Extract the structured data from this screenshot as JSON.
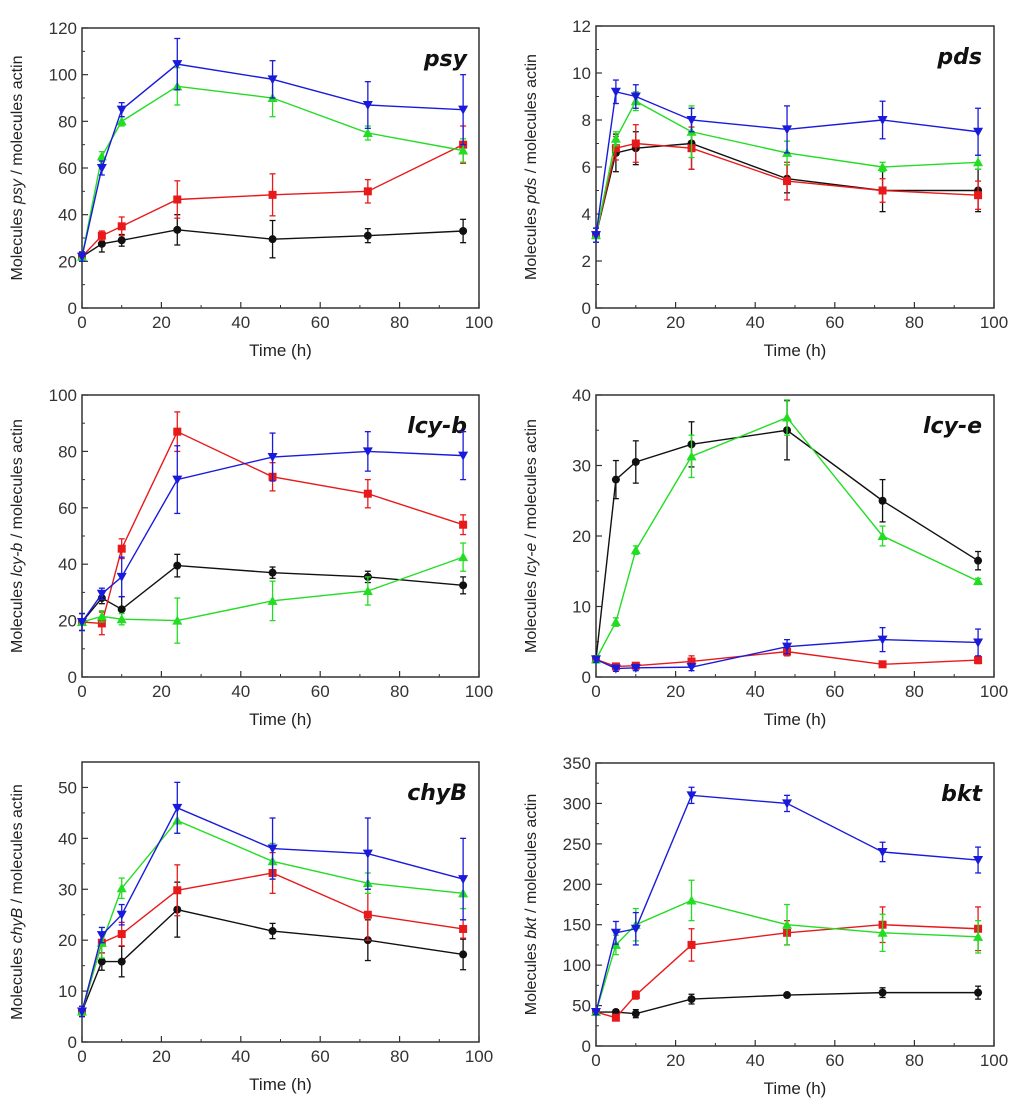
{
  "chart_data": [
    {
      "type": "line",
      "title": "psy",
      "xlabel": "Time (h)",
      "ylabel_parts": [
        "Molecules ",
        "psy",
        " / molecules actin"
      ],
      "xlim": [
        0,
        100
      ],
      "ylim": [
        0,
        120
      ],
      "xticks": [
        0,
        20,
        40,
        60,
        80,
        100
      ],
      "yticks": [
        0,
        20,
        40,
        60,
        80,
        100,
        120
      ],
      "x": [
        0,
        5,
        10,
        24,
        48,
        72,
        96
      ],
      "series": [
        {
          "name": "black",
          "color": "#111111",
          "marker": "circle",
          "values": [
            22,
            27.5,
            29,
            33.5,
            29.5,
            31,
            33
          ],
          "errors": [
            2,
            3.5,
            2.5,
            6.5,
            8,
            3,
            5
          ]
        },
        {
          "name": "red",
          "color": "#e8191b",
          "marker": "square",
          "values": [
            22,
            31,
            35,
            46.5,
            48.5,
            50,
            70
          ],
          "errors": [
            2,
            2,
            4,
            8,
            9,
            5,
            8
          ]
        },
        {
          "name": "green",
          "color": "#22dd22",
          "marker": "triangle-up",
          "values": [
            22,
            65,
            80,
            95,
            90,
            75,
            67.5
          ],
          "errors": [
            2,
            2,
            2,
            8,
            8,
            3,
            5
          ]
        },
        {
          "name": "blue",
          "color": "#1a1adc",
          "marker": "triangle-down",
          "values": [
            22,
            60,
            85,
            104.5,
            98,
            87,
            85
          ],
          "errors": [
            2,
            3,
            3,
            11,
            8,
            10,
            15
          ]
        }
      ]
    },
    {
      "type": "line",
      "title": "pds",
      "xlabel": "Time (h)",
      "ylabel_parts": [
        "Molecules ",
        "pds",
        " / molecules actin"
      ],
      "xlim": [
        0,
        100
      ],
      "ylim": [
        0,
        12
      ],
      "xticks": [
        0,
        20,
        40,
        60,
        80,
        100
      ],
      "yticks": [
        0,
        2,
        4,
        6,
        8,
        10,
        12
      ],
      "x": [
        0,
        5,
        10,
        24,
        48,
        72,
        96
      ],
      "series": [
        {
          "name": "black",
          "color": "#111111",
          "marker": "circle",
          "values": [
            3.1,
            6.6,
            6.8,
            7.0,
            5.5,
            5.0,
            5.0
          ],
          "errors": [
            0.3,
            0.8,
            0.7,
            1.1,
            0.6,
            0.9,
            0.9
          ]
        },
        {
          "name": "red",
          "color": "#e8191b",
          "marker": "square",
          "values": [
            3.1,
            6.8,
            7.0,
            6.8,
            5.4,
            5.0,
            4.8
          ],
          "errors": [
            0.3,
            0.5,
            0.8,
            0.9,
            0.8,
            0.5,
            0.6
          ]
        },
        {
          "name": "green",
          "color": "#22dd22",
          "marker": "triangle-up",
          "values": [
            3.1,
            7.2,
            8.8,
            7.5,
            6.6,
            6.0,
            6.2
          ],
          "errors": [
            0.3,
            0.3,
            0.4,
            1.1,
            0.5,
            0.2,
            0.3
          ]
        },
        {
          "name": "blue",
          "color": "#1a1adc",
          "marker": "triangle-down",
          "values": [
            3.1,
            9.2,
            9.0,
            8.0,
            7.6,
            8.0,
            7.5
          ],
          "errors": [
            0.3,
            0.5,
            0.5,
            0.5,
            1.0,
            0.8,
            1.0
          ]
        }
      ]
    },
    {
      "type": "line",
      "title": "lcy-b",
      "xlabel": "Time (h)",
      "ylabel_parts": [
        "Molecules ",
        "lcy-b",
        " / molecules actin"
      ],
      "xlim": [
        0,
        100
      ],
      "ylim": [
        0,
        100
      ],
      "xticks": [
        0,
        20,
        40,
        60,
        80,
        100
      ],
      "yticks": [
        0,
        20,
        40,
        60,
        80,
        100
      ],
      "x": [
        0,
        5,
        10,
        24,
        48,
        72,
        96
      ],
      "series": [
        {
          "name": "black",
          "color": "#111111",
          "marker": "circle",
          "values": [
            19.5,
            28,
            24,
            39.5,
            37,
            35.5,
            32.5
          ],
          "errors": [
            3,
            2,
            4.5,
            4,
            2,
            2,
            3
          ]
        },
        {
          "name": "red",
          "color": "#e8191b",
          "marker": "square",
          "values": [
            19.5,
            19,
            45.5,
            87,
            71,
            65,
            54
          ],
          "errors": [
            3,
            4,
            3.5,
            7,
            5,
            5,
            3.5
          ]
        },
        {
          "name": "green",
          "color": "#22dd22",
          "marker": "triangle-up",
          "values": [
            19.5,
            21.5,
            20.5,
            20,
            27,
            30.5,
            42.5
          ],
          "errors": [
            3,
            2,
            2,
            8,
            7,
            5,
            5
          ]
        },
        {
          "name": "blue",
          "color": "#1a1adc",
          "marker": "triangle-down",
          "values": [
            19.5,
            29.5,
            35.5,
            70,
            78,
            80,
            78.5
          ],
          "errors": [
            3,
            2,
            7,
            12,
            8.5,
            7,
            8.5
          ]
        }
      ]
    },
    {
      "type": "line",
      "title": "lcy-e",
      "xlabel": "Time (h)",
      "ylabel_parts": [
        "Molecules ",
        "lcy-e",
        " / molecules actin"
      ],
      "xlim": [
        0,
        100
      ],
      "ylim": [
        0,
        40
      ],
      "xticks": [
        0,
        20,
        40,
        60,
        80,
        100
      ],
      "yticks": [
        0,
        10,
        20,
        30,
        40
      ],
      "x": [
        0,
        5,
        10,
        24,
        48,
        72,
        96
      ],
      "series": [
        {
          "name": "black",
          "color": "#111111",
          "marker": "circle",
          "values": [
            2.5,
            28,
            30.5,
            33,
            35,
            25,
            16.5
          ],
          "errors": [
            0.5,
            2.7,
            3,
            3.2,
            4.2,
            3,
            1.3
          ]
        },
        {
          "name": "red",
          "color": "#e8191b",
          "marker": "square",
          "values": [
            2.5,
            1.5,
            1.6,
            2.2,
            3.6,
            1.8,
            2.4
          ],
          "errors": [
            0.4,
            0.4,
            0.4,
            0.8,
            0.6,
            0.3,
            0.5
          ]
        },
        {
          "name": "green",
          "color": "#22dd22",
          "marker": "triangle-up",
          "values": [
            2.5,
            7.8,
            18,
            31.3,
            36.8,
            20,
            13.6
          ],
          "errors": [
            0.5,
            0.6,
            0.6,
            3,
            2.5,
            1.4,
            0.4
          ]
        },
        {
          "name": "blue",
          "color": "#1a1adc",
          "marker": "triangle-down",
          "values": [
            2.5,
            1.2,
            1.3,
            1.4,
            4.3,
            5.3,
            4.9
          ],
          "errors": [
            0.4,
            0.4,
            0.4,
            0.5,
            1,
            1.7,
            1.9
          ]
        }
      ]
    },
    {
      "type": "line",
      "title": "chyB",
      "xlabel": "Time (h)",
      "ylabel_parts": [
        "Molecules ",
        "chyB",
        " / molecules actin"
      ],
      "xlim": [
        0,
        100
      ],
      "ylim": [
        0,
        55
      ],
      "xticks": [
        0,
        20,
        40,
        60,
        80,
        100
      ],
      "yticks": [
        0,
        10,
        20,
        30,
        40,
        50
      ],
      "x": [
        0,
        5,
        10,
        24,
        48,
        72,
        96
      ],
      "series": [
        {
          "name": "black",
          "color": "#111111",
          "marker": "circle",
          "values": [
            6,
            15.8,
            15.8,
            26,
            21.8,
            20,
            17.2
          ],
          "errors": [
            1,
            1.7,
            3,
            5.4,
            1.5,
            4,
            3
          ]
        },
        {
          "name": "red",
          "color": "#e8191b",
          "marker": "square",
          "values": [
            6,
            19.5,
            21.2,
            29.8,
            33.2,
            25,
            22.2
          ],
          "errors": [
            1,
            2,
            2.3,
            5,
            4,
            5,
            1.8
          ]
        },
        {
          "name": "green",
          "color": "#22dd22",
          "marker": "triangle-up",
          "values": [
            6,
            19.5,
            30.2,
            43.5,
            35.5,
            31.2,
            29.2
          ],
          "errors": [
            1,
            3,
            2,
            2.5,
            3.5,
            2,
            3
          ]
        },
        {
          "name": "blue",
          "color": "#1a1adc",
          "marker": "triangle-down",
          "values": [
            6,
            21,
            25,
            46,
            38,
            37,
            32
          ],
          "errors": [
            1,
            1.5,
            2,
            5,
            6,
            7,
            8
          ]
        }
      ]
    },
    {
      "type": "line",
      "title": "bkt",
      "xlabel": "Time (h)",
      "ylabel_parts": [
        "Molecules ",
        "bkt",
        " / molecules actin"
      ],
      "xlim": [
        0,
        100
      ],
      "ylim": [
        0,
        350
      ],
      "xticks": [
        0,
        20,
        40,
        60,
        80,
        100
      ],
      "yticks": [
        0,
        50,
        100,
        150,
        200,
        250,
        300,
        350
      ],
      "x": [
        0,
        5,
        10,
        24,
        48,
        72,
        96
      ],
      "series": [
        {
          "name": "black",
          "color": "#111111",
          "marker": "circle",
          "values": [
            42,
            42,
            40,
            58,
            63,
            66,
            66
          ],
          "errors": [
            3,
            3,
            5,
            6,
            2,
            6,
            8
          ]
        },
        {
          "name": "red",
          "color": "#e8191b",
          "marker": "square",
          "values": [
            42,
            35,
            63,
            125,
            140,
            150,
            145
          ],
          "errors": [
            3,
            3,
            5,
            20,
            15,
            22,
            27
          ]
        },
        {
          "name": "green",
          "color": "#22dd22",
          "marker": "triangle-up",
          "values": [
            42,
            125,
            150,
            180,
            150,
            140,
            135
          ],
          "errors": [
            3,
            12,
            20,
            25,
            25,
            23,
            20
          ]
        },
        {
          "name": "blue",
          "color": "#1a1adc",
          "marker": "triangle-down",
          "values": [
            42,
            140,
            145,
            310,
            300,
            240,
            230
          ],
          "errors": [
            3,
            14,
            20,
            10,
            10,
            12,
            16
          ]
        }
      ]
    }
  ]
}
